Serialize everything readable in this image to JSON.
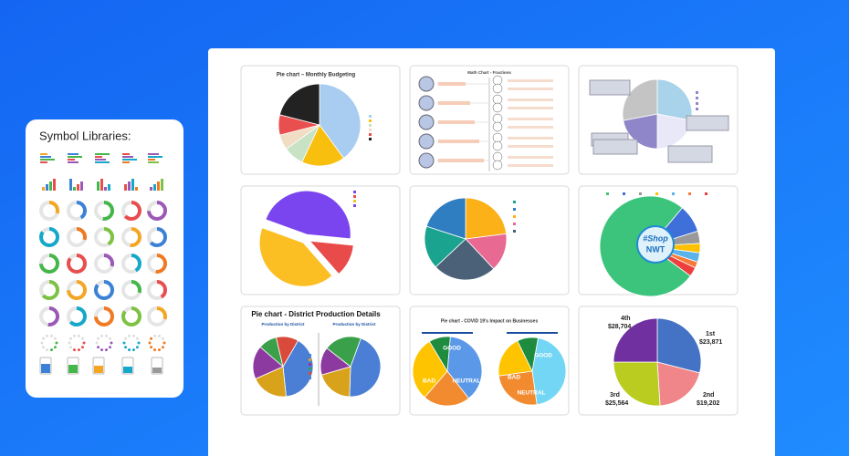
{
  "sidebar": {
    "title": "Symbol Libraries:"
  },
  "thumbnails": {
    "budgeting": {
      "title": "Pie chart – Monthly Budgeting"
    },
    "fractions": {
      "title": "Math Chart - Fractions"
    },
    "district": {
      "title": "Pie chart - District Production Details",
      "subtitles": [
        "Production by District",
        "Production by District"
      ]
    },
    "covid": {
      "title": "Pie chart - COVID 19's Impact on Businesses",
      "labels": [
        "GOOD",
        "NEUTRAL",
        "BAD"
      ]
    },
    "shop": {
      "badge": [
        "#Shop",
        "NWT"
      ]
    },
    "quarters": {
      "labels": [
        {
          "name": "4th",
          "amount": "$28,704"
        },
        {
          "name": "1st",
          "amount": "$23,871"
        },
        {
          "name": "3rd",
          "amount": "$25,564"
        },
        {
          "name": "2nd",
          "amount": "$19,202"
        }
      ]
    }
  }
}
